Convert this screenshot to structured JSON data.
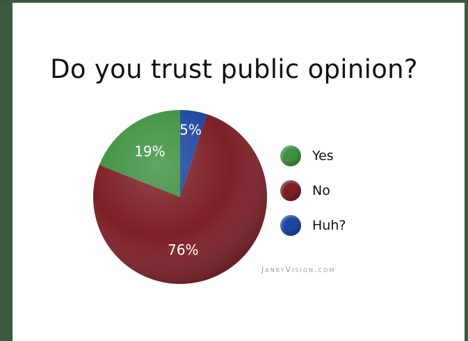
{
  "chart_data": {
    "type": "pie",
    "title": "Do you trust public opinion?",
    "slices": [
      {
        "label": "Yes",
        "value": 19,
        "display": "19%",
        "color": "#3f9140"
      },
      {
        "label": "No",
        "value": 76,
        "display": "76%",
        "color": "#7d1f27"
      },
      {
        "label": "Huh?",
        "value": 5,
        "display": "5%",
        "color": "#1f47a0"
      }
    ],
    "legend_position": "right"
  },
  "watermark": "JankyVision.com"
}
